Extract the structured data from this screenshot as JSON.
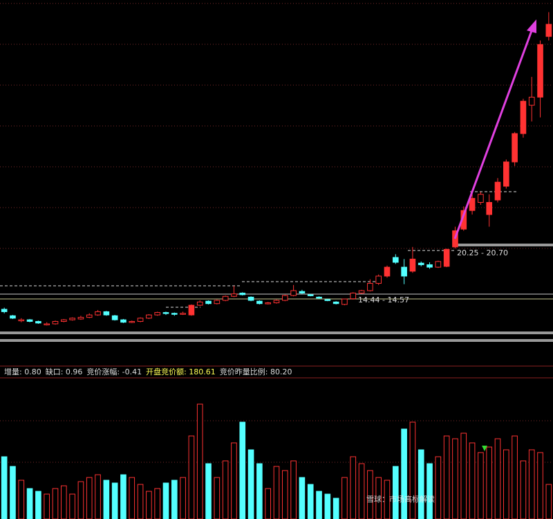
{
  "chart_data": {
    "type": "candlestick",
    "open": [
      13.3,
      12.5,
      11.9,
      12.0,
      11.8,
      11.4,
      11.5,
      11.8,
      12.0,
      12.1,
      12.3,
      12.6,
      13.0,
      12.5,
      12.0,
      11.7,
      11.8,
      12.2,
      12.6,
      12.9,
      12.8,
      12.7,
      12.6,
      13.8,
      14.3,
      14.0,
      14.4,
      14.9,
      15.3,
      14.8,
      14.3,
      14.0,
      14.1,
      14.4,
      15.0,
      15.5,
      15.1,
      14.8,
      14.5,
      14.2,
      13.9,
      14.6,
      15.3,
      15.6,
      16.5,
      17.4,
      19.7,
      18.5,
      18.0,
      19.0,
      18.8,
      18.5,
      18.6,
      21.0,
      23.2,
      25.5,
      26.5,
      25.0,
      26.8,
      28.5,
      31.5,
      35.0,
      38.5,
      39.5,
      47.0
    ],
    "high": [
      13.5,
      12.6,
      12.2,
      12.1,
      11.9,
      11.7,
      11.9,
      12.1,
      12.3,
      12.5,
      12.8,
      13.2,
      13.1,
      12.6,
      12.1,
      11.9,
      12.3,
      12.7,
      13.0,
      13.0,
      12.9,
      13.0,
      13.9,
      14.4,
      14.4,
      14.5,
      15.0,
      16.2,
      15.4,
      14.9,
      14.4,
      14.2,
      14.5,
      15.1,
      16.3,
      15.7,
      15.2,
      14.9,
      14.6,
      14.3,
      14.6,
      15.4,
      15.7,
      17.0,
      17.6,
      18.7,
      20.1,
      19.5,
      21.0,
      19.2,
      19.1,
      19.3,
      20.8,
      23.5,
      26.0,
      27.6,
      27.8,
      27.5,
      29.5,
      31.8,
      35.2,
      39.3,
      42.0,
      46.5,
      50.0
    ],
    "low": [
      12.8,
      12.1,
      11.7,
      11.7,
      11.5,
      11.3,
      11.4,
      11.7,
      11.9,
      12.0,
      12.2,
      12.5,
      12.5,
      11.9,
      11.6,
      11.6,
      11.7,
      12.1,
      12.5,
      12.6,
      12.5,
      12.6,
      12.5,
      13.7,
      13.9,
      13.9,
      14.3,
      14.8,
      15.0,
      14.3,
      13.9,
      13.9,
      14.0,
      14.3,
      14.9,
      15.2,
      14.9,
      14.6,
      14.3,
      13.9,
      13.8,
      14.5,
      15.2,
      15.5,
      16.3,
      17.2,
      18.9,
      16.4,
      17.8,
      18.6,
      18.3,
      18.4,
      18.5,
      20.8,
      23.0,
      25.0,
      26.2,
      23.5,
      26.5,
      28.2,
      31.0,
      34.5,
      36.5,
      37.0,
      46.5
    ],
    "close": [
      13.0,
      12.2,
      12.0,
      11.8,
      11.6,
      11.5,
      11.8,
      12.0,
      12.2,
      12.3,
      12.6,
      13.0,
      12.6,
      12.0,
      11.7,
      11.8,
      12.2,
      12.6,
      12.9,
      12.8,
      12.7,
      12.8,
      13.8,
      14.2,
      14.0,
      14.4,
      14.9,
      15.2,
      15.1,
      14.4,
      14.0,
      14.1,
      14.4,
      15.0,
      15.6,
      15.3,
      15.0,
      14.7,
      14.4,
      14.0,
      14.57,
      15.3,
      15.6,
      16.5,
      17.4,
      18.5,
      19.1,
      17.4,
      19.5,
      18.8,
      18.5,
      19.2,
      20.7,
      23.0,
      25.5,
      27.0,
      27.5,
      26.5,
      29.0,
      31.5,
      35.0,
      39.0,
      39.5,
      46.0,
      48.5
    ],
    "volume": [
      45,
      38,
      28,
      22,
      20,
      18,
      22,
      24,
      18,
      27,
      30,
      32,
      28,
      26,
      32,
      30,
      25,
      20,
      22,
      26,
      28,
      30,
      60,
      83,
      40,
      30,
      42,
      55,
      70,
      50,
      40,
      22,
      38,
      35,
      42,
      30,
      25,
      20,
      18,
      15,
      30,
      45,
      40,
      35,
      30,
      28,
      38,
      65,
      70,
      50,
      40,
      45,
      60,
      58,
      62,
      55,
      48,
      52,
      58,
      50,
      60,
      42,
      50,
      48,
      25
    ],
    "ylim": [
      10.9,
      51.5
    ],
    "vlim": [
      0,
      100
    ],
    "up_color": "#ff3232",
    "down_color": "#54ffff",
    "annotations": [
      "14.44 - 14.57",
      "20.25 - 20.70"
    ],
    "indicators": [
      "增量: 0.80",
      "缺口: 0.96",
      "竞价涨幅: -0.41",
      "开盘竞价额: 180.61",
      "竞价昨量比例: 80.20"
    ],
    "watermark": "雪球：市场高标解读"
  }
}
